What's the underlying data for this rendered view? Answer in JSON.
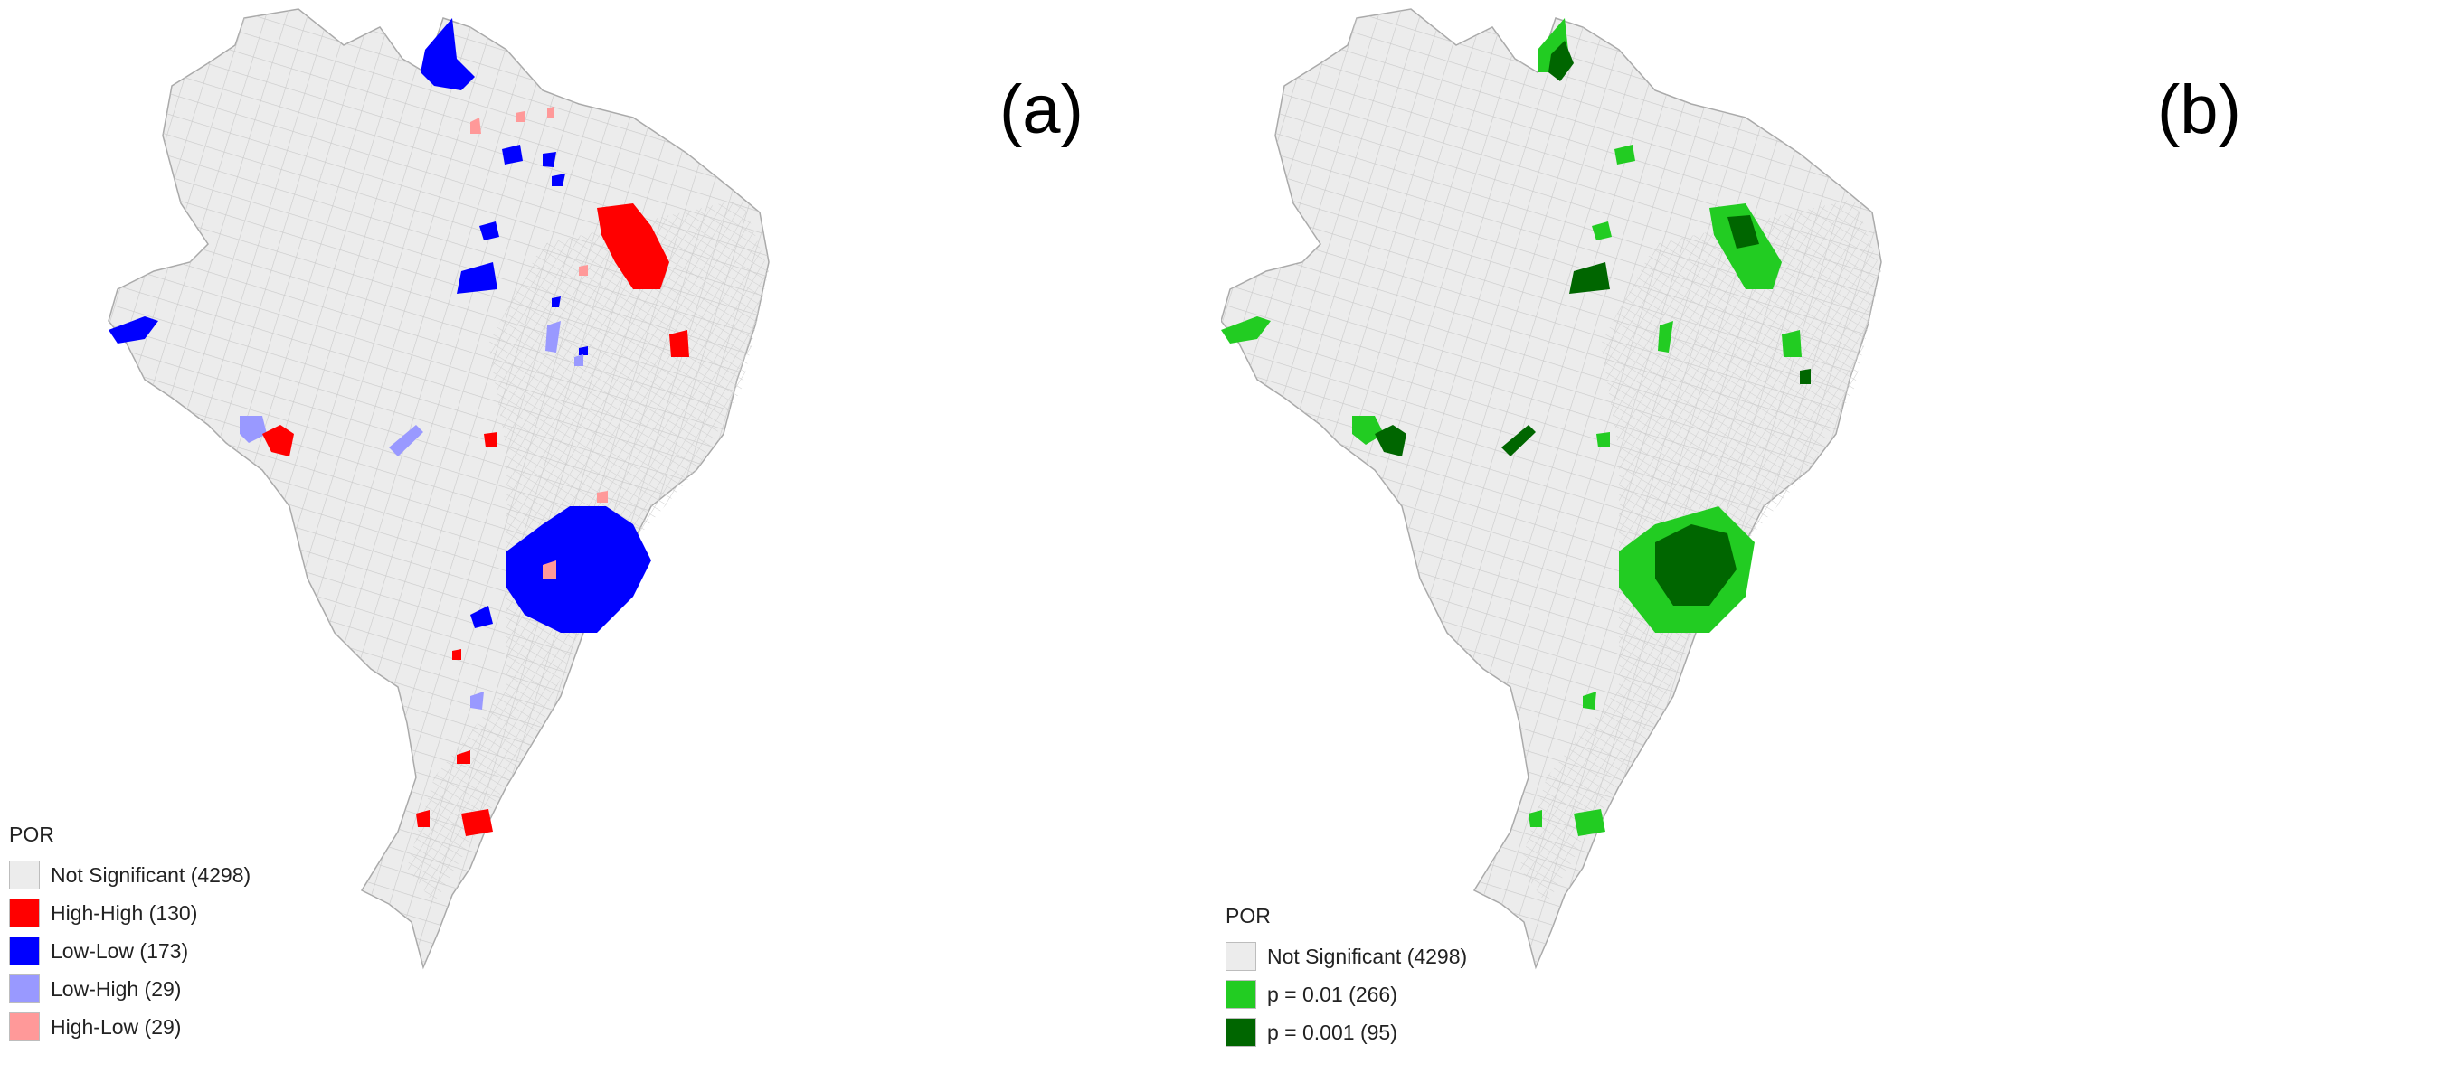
{
  "panels": [
    {
      "label": "(a)",
      "legend": {
        "title": "POR",
        "items": [
          {
            "label": "Not Significant (4298)",
            "color": "#ececec"
          },
          {
            "label": "High-High (130)",
            "color": "#ff0000"
          },
          {
            "label": "Low-Low (173)",
            "color": "#0000ff"
          },
          {
            "label": "Low-High (29)",
            "color": "#9999ff"
          },
          {
            "label": "High-Low (29)",
            "color": "#ff9999"
          }
        ]
      }
    },
    {
      "label": "(b)",
      "legend": {
        "title": "POR",
        "items": [
          {
            "label": "Not Significant (4298)",
            "color": "#ececec"
          },
          {
            "label": "p = 0.01 (266)",
            "color": "#22cc22"
          },
          {
            "label": "p = 0.001 (95)",
            "color": "#006600"
          }
        ]
      }
    }
  ]
}
